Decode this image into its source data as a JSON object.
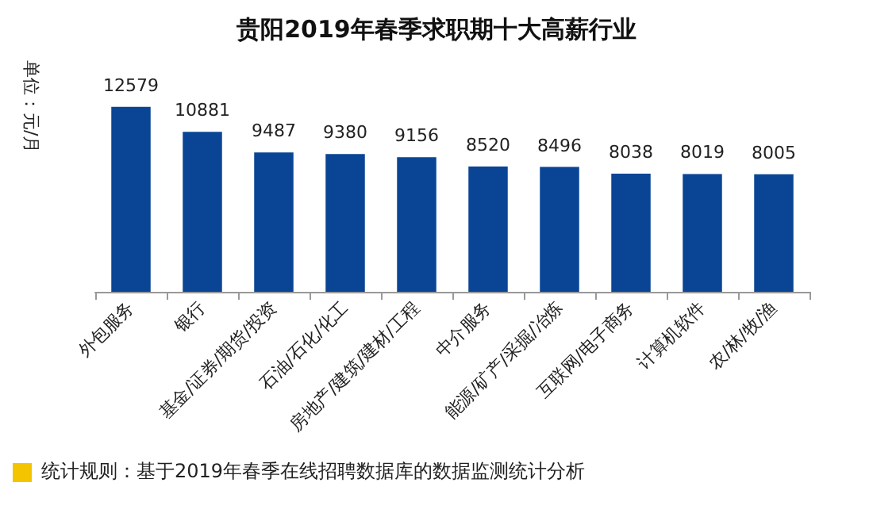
{
  "chart_data": {
    "type": "bar",
    "title": "贵阳2019年春季求职期十大高薪行业",
    "ylabel": "单位：元/月",
    "categories": [
      "外包服务",
      "银行",
      "基金/证券/期货/投资",
      "石油/石化/化工",
      "房地产/建筑/建材/工程",
      "中介服务",
      "能源/矿产/采掘/冶炼",
      "互联网/电子商务",
      "计算机软件",
      "农/林/牧/渔"
    ],
    "values": [
      12579,
      10881,
      9487,
      9380,
      9156,
      8520,
      8496,
      8038,
      8019,
      8005
    ],
    "color": "#0a4595",
    "data_labels": true,
    "annotations": [
      "统计规则：基于2019年春季在线招聘数据库的数据监测统计分析"
    ]
  }
}
